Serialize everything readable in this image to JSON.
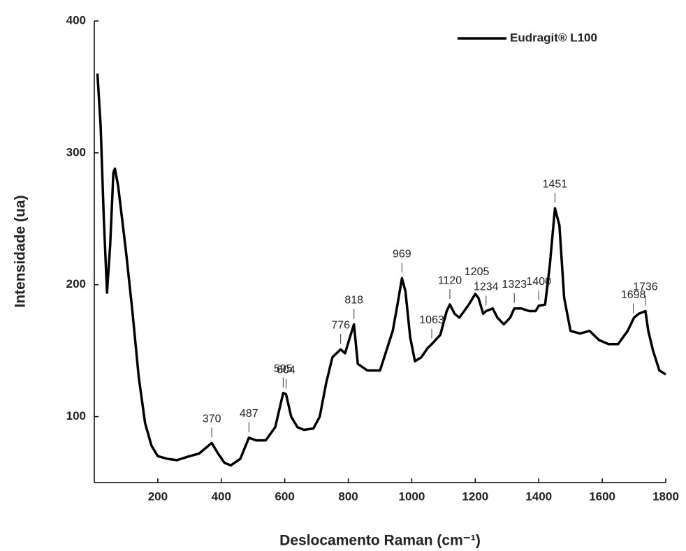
{
  "chart_data": {
    "type": "line",
    "x_label": "Deslocamento Raman (cm⁻¹)",
    "y_label": "Intensidade (ua)",
    "xlim": [
      0,
      1800
    ],
    "ylim": [
      50,
      400
    ],
    "xticks": [
      200,
      400,
      600,
      800,
      1000,
      1200,
      1400,
      1600,
      1800
    ],
    "yticks": [
      100,
      200,
      300,
      400
    ],
    "legend": "top-right",
    "x": [
      10,
      20,
      30,
      40,
      50,
      60,
      65,
      75,
      85,
      100,
      120,
      140,
      160,
      180,
      200,
      230,
      260,
      300,
      330,
      350,
      370,
      390,
      410,
      430,
      460,
      487,
      510,
      540,
      570,
      595,
      604,
      620,
      640,
      660,
      690,
      710,
      730,
      750,
      776,
      790,
      805,
      818,
      830,
      860,
      900,
      920,
      940,
      955,
      969,
      980,
      995,
      1010,
      1030,
      1050,
      1063,
      1090,
      1110,
      1120,
      1135,
      1150,
      1180,
      1200,
      1210,
      1225,
      1234,
      1255,
      1270,
      1290,
      1310,
      1323,
      1345,
      1370,
      1390,
      1400,
      1420,
      1435,
      1451,
      1465,
      1480,
      1500,
      1530,
      1560,
      1590,
      1620,
      1650,
      1680,
      1700,
      1715,
      1736,
      1745,
      1760,
      1780,
      1800
    ],
    "series": [
      {
        "name": "Eudragit® L100",
        "color": "#000000",
        "values": [
          360,
          320,
          250,
          194,
          230,
          285,
          288,
          275,
          255,
          225,
          180,
          130,
          95,
          78,
          70,
          68,
          67,
          70,
          72,
          76,
          80,
          72,
          65,
          63,
          68,
          84,
          82,
          82,
          92,
          118,
          117,
          100,
          92,
          90,
          91,
          100,
          125,
          145,
          151,
          148,
          160,
          170,
          140,
          135,
          135,
          150,
          165,
          185,
          205,
          195,
          160,
          142,
          145,
          152,
          155,
          162,
          180,
          185,
          178,
          175,
          185,
          193,
          190,
          178,
          180,
          182,
          175,
          170,
          175,
          182,
          182,
          180,
          180,
          184,
          185,
          215,
          258,
          245,
          190,
          165,
          163,
          165,
          158,
          155,
          155,
          165,
          175,
          178,
          180,
          165,
          150,
          135,
          132
        ]
      }
    ],
    "annotations": [
      370,
      487,
      595,
      604,
      776,
      818,
      969,
      1063,
      1120,
      1205,
      1234,
      1323,
      1400,
      1451,
      1698,
      1736
    ]
  }
}
